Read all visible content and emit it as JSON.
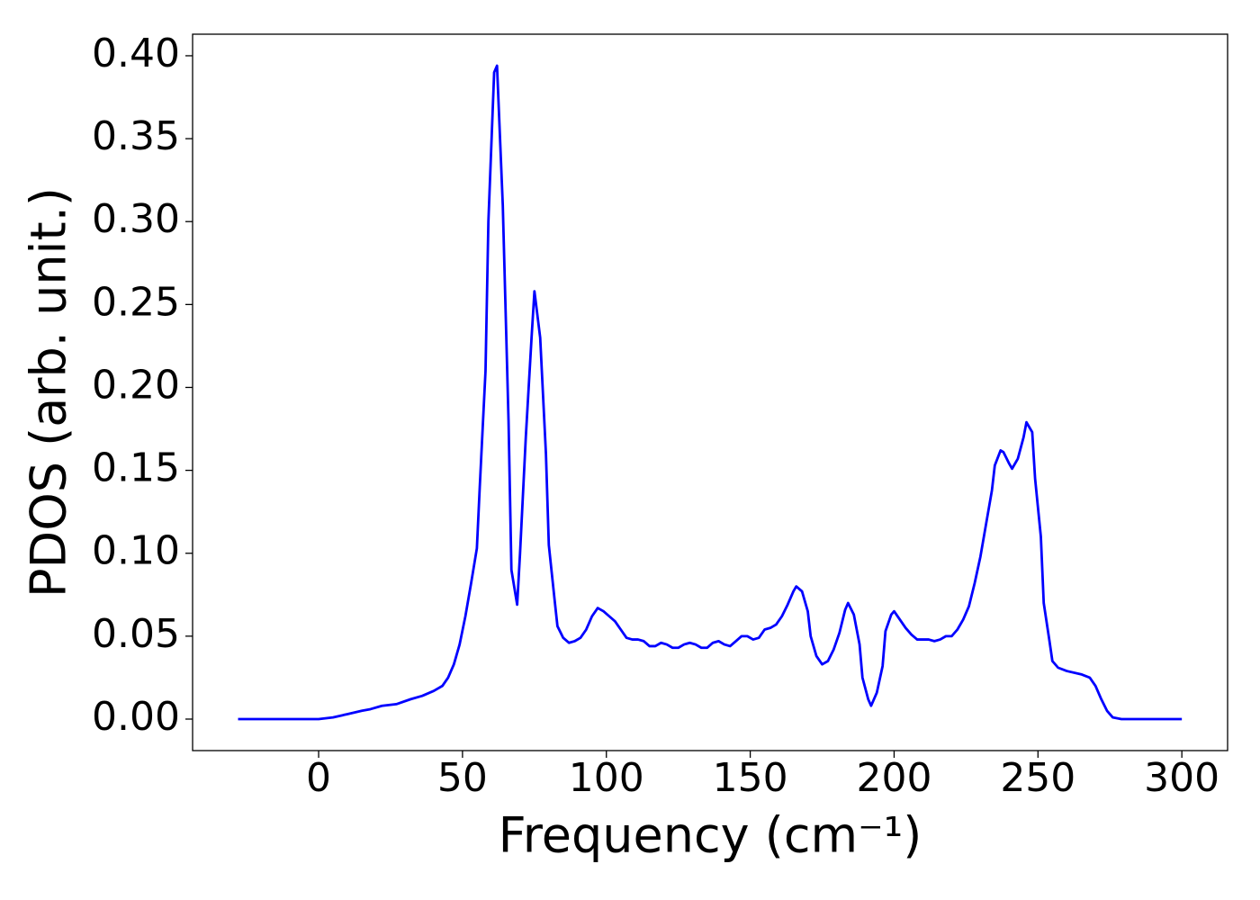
{
  "chart_data": {
    "type": "line",
    "xlabel": "Frequency (cm⁻¹)",
    "ylabel": "PDOS (arb. unit.)",
    "xlim": [
      -43.8,
      315.9
    ],
    "ylim": [
      -0.019,
      0.413
    ],
    "xticks": [
      0,
      50,
      100,
      150,
      200,
      250,
      300
    ],
    "yticks": [
      {
        "value": 0,
        "label": "0.00"
      },
      {
        "value": 0.05,
        "label": "0.05"
      },
      {
        "value": 0.1,
        "label": "0.10"
      },
      {
        "value": 0.15,
        "label": "0.15"
      },
      {
        "value": 0.2,
        "label": "0.20"
      },
      {
        "value": 0.25,
        "label": "0.25"
      },
      {
        "value": 0.3,
        "label": "0.30"
      },
      {
        "value": 0.35,
        "label": "0.35"
      },
      {
        "value": 0.4,
        "label": "0.40"
      }
    ],
    "grid": false,
    "series": [
      {
        "color": "#0000ff",
        "x": [
          -28,
          0,
          5,
          10,
          15,
          18,
          22,
          27,
          32,
          36,
          40,
          43,
          45,
          47,
          49,
          51,
          53,
          55,
          56,
          58,
          59,
          61,
          62,
          64,
          66,
          67,
          69,
          70,
          72,
          74,
          75,
          77,
          79,
          80,
          82,
          83,
          85,
          87,
          89,
          91,
          93,
          95,
          97,
          99,
          101,
          103,
          105,
          107,
          109,
          111,
          113,
          115,
          117,
          119,
          121,
          123,
          125,
          127,
          129,
          131,
          133,
          135,
          137,
          139,
          141,
          143,
          145,
          147,
          149,
          151,
          153,
          155,
          157,
          159,
          161,
          163,
          165,
          166,
          168,
          170,
          171,
          173,
          175,
          177,
          179,
          181,
          183,
          184,
          186,
          188,
          189,
          191,
          192,
          194,
          196,
          197,
          199,
          200,
          202,
          204,
          206,
          208,
          210,
          212,
          214,
          216,
          218,
          220,
          222,
          224,
          226,
          228,
          230,
          232,
          234,
          235,
          237,
          238,
          240,
          241,
          243,
          245,
          246,
          248,
          249,
          251,
          252,
          254,
          255,
          257,
          260,
          265,
          268,
          270,
          272,
          274,
          276,
          279,
          290,
          300
        ],
        "values": [
          0,
          0,
          0.001,
          0.003,
          0.005,
          0.006,
          0.008,
          0.009,
          0.012,
          0.014,
          0.017,
          0.02,
          0.025,
          0.033,
          0.045,
          0.062,
          0.082,
          0.103,
          0.14,
          0.21,
          0.3,
          0.39,
          0.394,
          0.31,
          0.18,
          0.09,
          0.069,
          0.1,
          0.17,
          0.23,
          0.258,
          0.23,
          0.16,
          0.105,
          0.072,
          0.056,
          0.049,
          0.046,
          0.047,
          0.049,
          0.054,
          0.062,
          0.067,
          0.065,
          0.062,
          0.059,
          0.054,
          0.049,
          0.048,
          0.048,
          0.047,
          0.044,
          0.044,
          0.046,
          0.045,
          0.043,
          0.043,
          0.045,
          0.046,
          0.045,
          0.043,
          0.043,
          0.046,
          0.047,
          0.045,
          0.044,
          0.047,
          0.05,
          0.05,
          0.048,
          0.049,
          0.054,
          0.055,
          0.057,
          0.062,
          0.069,
          0.077,
          0.08,
          0.077,
          0.065,
          0.05,
          0.038,
          0.033,
          0.035,
          0.042,
          0.052,
          0.066,
          0.07,
          0.063,
          0.045,
          0.025,
          0.012,
          0.008,
          0.016,
          0.032,
          0.053,
          0.063,
          0.065,
          0.06,
          0.055,
          0.051,
          0.048,
          0.048,
          0.048,
          0.047,
          0.048,
          0.05,
          0.05,
          0.054,
          0.06,
          0.068,
          0.082,
          0.098,
          0.118,
          0.138,
          0.153,
          0.162,
          0.161,
          0.154,
          0.151,
          0.157,
          0.17,
          0.179,
          0.173,
          0.145,
          0.11,
          0.07,
          0.047,
          0.035,
          0.031,
          0.029,
          0.027,
          0.025,
          0.02,
          0.012,
          0.005,
          0.001,
          0,
          0,
          0
        ]
      }
    ]
  }
}
